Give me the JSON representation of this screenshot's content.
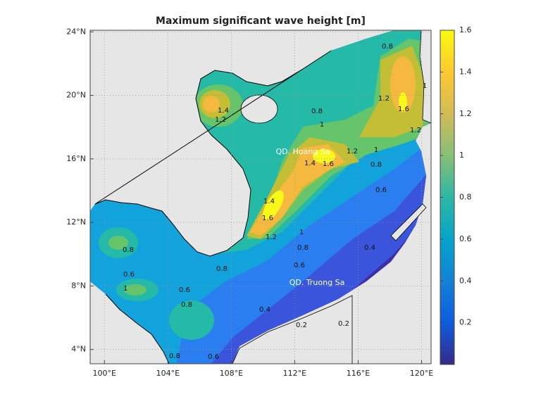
{
  "chart_data": {
    "type": "contour",
    "title": "Maximum significant wave height [m]",
    "xlim": [
      99.1,
      120.6
    ],
    "ylim": [
      3.1,
      24.1
    ],
    "xticks": [
      {
        "value": 100,
        "label": "100°E"
      },
      {
        "value": 104,
        "label": "104°E"
      },
      {
        "value": 108,
        "label": "108°E"
      },
      {
        "value": 112,
        "label": "112°E"
      },
      {
        "value": 116,
        "label": "116°E"
      },
      {
        "value": 120,
        "label": "120°E"
      }
    ],
    "yticks": [
      {
        "value": 4,
        "label": "4°N"
      },
      {
        "value": 8,
        "label": "8°N"
      },
      {
        "value": 12,
        "label": "12°N"
      },
      {
        "value": 16,
        "label": "16°N"
      },
      {
        "value": 20,
        "label": "20°N"
      },
      {
        "value": 24,
        "label": "24°N"
      }
    ],
    "grid": true,
    "land_color": "#e6e6e6",
    "band_colors": [
      "#3e2fa8",
      "#3a55dc",
      "#2b7ef0",
      "#13a3dc",
      "#25b9a8",
      "#66c46a",
      "#c4bd36",
      "#f6b93f",
      "#f8f918"
    ],
    "colorbar": {
      "clim": [
        0,
        1.6
      ],
      "ticks": [
        0.2,
        0.4,
        0.6,
        0.8,
        1,
        1.2,
        1.4,
        1.6
      ],
      "colors": [
        "#352a87",
        "#0f5cdd",
        "#1481d6",
        "#06a4ca",
        "#2eb7a4",
        "#87bf77",
        "#d1bb59",
        "#fec832",
        "#f9fb0e"
      ]
    },
    "contour_labels": [
      1.4,
      1.2,
      0.8,
      1,
      1.4,
      1.6,
      1.2,
      1,
      0.8,
      0.6,
      0.4,
      1.4,
      1.6,
      1.2,
      1,
      0.8,
      0.6,
      0.4,
      0.2,
      1.6,
      1.2,
      1,
      0.8,
      0.6,
      1,
      0.8,
      0.6,
      0.8,
      0.6,
      0.8,
      0.8,
      1.2,
      0.2
    ],
    "place_labels": [
      "QD. Hoang Sa",
      "QD. Truong Sa"
    ]
  }
}
